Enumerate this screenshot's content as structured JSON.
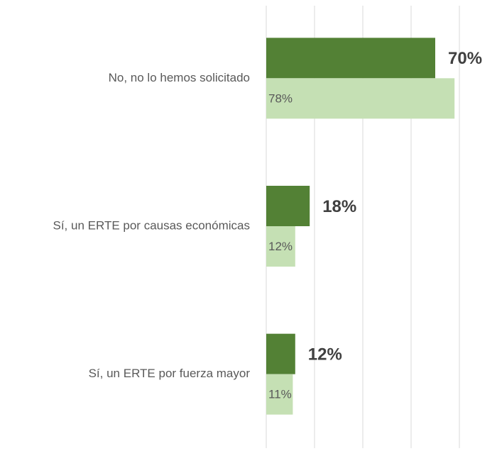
{
  "chart_data": {
    "type": "barh",
    "categories": [
      "No, no lo hemos solicitado",
      "Sí, un ERTE por causas económicas",
      "Sí, un ERTE por fuerza mayor"
    ],
    "series": [
      {
        "color": "#538135",
        "values": [
          70,
          18,
          12
        ],
        "value_labels": [
          "70%",
          "18%",
          "12%"
        ]
      },
      {
        "color": "#c5e0b4",
        "values": [
          78,
          12,
          11
        ],
        "value_labels": [
          "78%",
          "12%",
          "11%"
        ]
      }
    ],
    "xlim": [
      0,
      80
    ],
    "xticks": [
      0,
      20,
      40,
      60,
      80
    ],
    "grid": true
  }
}
